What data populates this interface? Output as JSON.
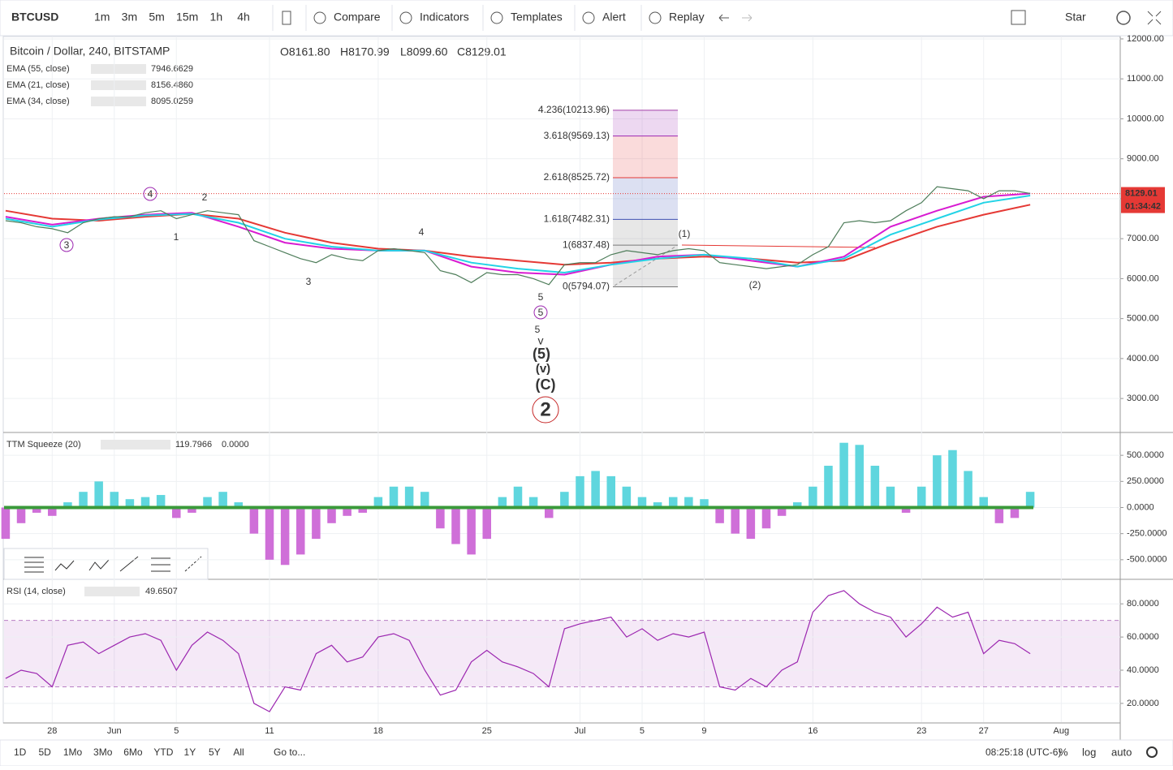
{
  "toolbar": {
    "symbol": "BTCUSD",
    "intervals": [
      "1m",
      "3m",
      "5m",
      "15m",
      "1h",
      "4h"
    ],
    "active_interval": 5,
    "buttons": [
      "Compare",
      "Indicators",
      "Templates",
      "Alert",
      "Replay"
    ],
    "star": "Star"
  },
  "legend": {
    "title": "Bitcoin / Dollar, 240, BITSTAMP",
    "ohlc": [
      "O8161.80",
      "H8170.99",
      "L8099.60",
      "C8129.01"
    ],
    "emas": [
      {
        "name": "EMA (55, close)",
        "value": "7946.6629",
        "color": "#e53935"
      },
      {
        "name": "EMA (21, close)",
        "value": "8156.4860",
        "color": "#d81bd1"
      },
      {
        "name": "EMA (34, close)",
        "value": "8095.0259",
        "color": "#22d3e6"
      }
    ]
  },
  "chart_data": [
    {
      "type": "line",
      "x": [
        -3,
        -2,
        -1,
        0,
        1,
        2,
        3,
        4,
        5,
        6,
        7,
        8,
        9,
        10,
        11,
        12,
        13,
        14,
        15,
        16,
        17,
        18,
        19,
        20,
        21,
        22,
        23,
        24,
        25,
        26,
        27,
        28,
        29,
        30,
        31,
        32,
        33,
        34,
        35,
        36,
        37,
        38,
        39,
        40,
        41,
        42,
        43,
        44,
        45,
        46,
        47,
        48,
        49,
        50,
        51,
        52,
        53,
        54,
        55,
        56,
        57,
        58,
        59,
        60,
        61,
        62,
        63
      ],
      "series": [
        {
          "name": "close",
          "color": "#4e7d5a",
          "values": [
            7450,
            7400,
            7300,
            7250,
            7150,
            7400,
            7500,
            7550,
            7550,
            7650,
            7700,
            7500,
            7600,
            7700,
            7650,
            7600,
            6950,
            6800,
            6650,
            6500,
            6400,
            6600,
            6500,
            6450,
            6700,
            6750,
            6700,
            6650,
            6200,
            6100,
            5900,
            6150,
            6100,
            6100,
            6000,
            5850,
            6350,
            6400,
            6400,
            6600,
            6700,
            6650,
            6600,
            6700,
            6750,
            6700,
            6400,
            6350,
            6300,
            6250,
            6300,
            6350,
            6600,
            6800,
            7400,
            7450,
            7400,
            7450,
            7700,
            7900,
            8300,
            8250,
            8200,
            8000,
            8200,
            8200,
            8130
          ]
        }
      ],
      "ema_x": [
        -3,
        0,
        3,
        6,
        9,
        12,
        15,
        18,
        21,
        24,
        27,
        30,
        33,
        36,
        39,
        42,
        45,
        48,
        51,
        54,
        57,
        60,
        63
      ],
      "ema_series": [
        {
          "name": "EMA (55, close)",
          "color": "#e53935",
          "values": [
            7700,
            7500,
            7450,
            7550,
            7620,
            7500,
            7150,
            6900,
            6750,
            6700,
            6550,
            6450,
            6350,
            6400,
            6500,
            6550,
            6500,
            6400,
            6450,
            6900,
            7300,
            7600,
            7850
          ]
        },
        {
          "name": "EMA (21, close)",
          "color": "#d81bd1",
          "values": [
            7550,
            7350,
            7500,
            7600,
            7650,
            7300,
            6900,
            6750,
            6700,
            6700,
            6300,
            6150,
            6100,
            6350,
            6550,
            6600,
            6450,
            6300,
            6550,
            7300,
            7700,
            8050,
            8130
          ]
        },
        {
          "name": "EMA (34, close)",
          "color": "#22d3e6",
          "values": [
            7500,
            7300,
            7480,
            7580,
            7620,
            7400,
            7000,
            6800,
            6700,
            6700,
            6400,
            6250,
            6150,
            6350,
            6500,
            6600,
            6500,
            6300,
            6500,
            7100,
            7500,
            7900,
            8080
          ]
        }
      ],
      "xlim": [
        -3.1,
        68.8
      ],
      "xticks": [
        {
          "value": 0,
          "label": "28"
        },
        {
          "value": 4,
          "label": "Jun"
        },
        {
          "value": 8,
          "label": "5"
        },
        {
          "value": 14,
          "label": "11"
        },
        {
          "value": 21,
          "label": "18"
        },
        {
          "value": 28,
          "label": "25"
        },
        {
          "value": 34,
          "label": "Jul"
        },
        {
          "value": 38,
          "label": "5"
        },
        {
          "value": 42,
          "label": "9"
        },
        {
          "value": 49,
          "label": "16"
        },
        {
          "value": 56,
          "label": "23"
        },
        {
          "value": 60,
          "label": "27"
        },
        {
          "value": 65,
          "label": "Aug"
        }
      ],
      "ylim": [
        2170,
        12060
      ],
      "yticks": [
        {
          "value": 3000,
          "label": "3000.00"
        },
        {
          "value": 4000,
          "label": "4000.00"
        },
        {
          "value": 5000,
          "label": "5000.00"
        },
        {
          "value": 6000,
          "label": "6000.00"
        },
        {
          "value": 7000,
          "label": "7000.00"
        },
        {
          "value": 8000,
          "label": "8000.00"
        },
        {
          "value": 9000,
          "label": "9000.00"
        },
        {
          "value": 10000,
          "label": "10000.00"
        },
        {
          "value": 11000,
          "label": "11000.00"
        },
        {
          "value": 12000,
          "label": "12000.00"
        }
      ],
      "last_price": {
        "value": 8129.01,
        "label": "8129.01"
      },
      "countdown": "01:34:42",
      "fib_levels": [
        {
          "label": "4.236(10213.96)",
          "value": 10213.96,
          "color": "#a23ea8"
        },
        {
          "label": "3.618(9569.13)",
          "value": 9569.13,
          "color": "#9c27b0"
        },
        {
          "label": "2.618(8525.72)",
          "value": 8525.72,
          "color": "#e53935"
        },
        {
          "label": "1.618(7482.31)",
          "value": 7482.31,
          "color": "#3f51b5"
        },
        {
          "label": "1(6837.48)",
          "value": 6837.48,
          "color": "#787878"
        },
        {
          "label": "0(5794.07)",
          "value": 5794.07,
          "color": "#787878"
        }
      ],
      "annotations": [
        "4",
        "2",
        "1",
        "3",
        "3",
        "4",
        "5",
        "5",
        "5",
        "v",
        "(5)",
        "(v)",
        "(C)",
        "2",
        "(1)",
        "(2)"
      ]
    },
    {
      "type": "histogram",
      "title": "TTM Squeeze (20)",
      "readouts": [
        "119.7966",
        "0.0000"
      ],
      "x": [
        -3,
        -2,
        -1,
        0,
        1,
        2,
        3,
        4,
        5,
        6,
        7,
        8,
        9,
        10,
        11,
        12,
        13,
        14,
        15,
        16,
        17,
        18,
        19,
        20,
        21,
        22,
        23,
        24,
        25,
        26,
        27,
        28,
        29,
        30,
        31,
        32,
        33,
        34,
        35,
        36,
        37,
        38,
        39,
        40,
        41,
        42,
        43,
        44,
        45,
        46,
        47,
        48,
        49,
        50,
        51,
        52,
        53,
        54,
        55,
        56,
        57,
        58,
        59,
        60,
        61,
        62,
        63
      ],
      "values": [
        -300,
        -150,
        -50,
        -80,
        50,
        150,
        250,
        150,
        80,
        100,
        120,
        -100,
        -50,
        100,
        150,
        50,
        -250,
        -500,
        -550,
        -450,
        -300,
        -150,
        -80,
        -50,
        100,
        200,
        200,
        150,
        -200,
        -350,
        -450,
        -300,
        100,
        200,
        100,
        -100,
        150,
        300,
        350,
        300,
        200,
        100,
        50,
        100,
        100,
        80,
        -150,
        -250,
        -300,
        -200,
        -80,
        50,
        200,
        400,
        620,
        600,
        400,
        200,
        -50,
        200,
        500,
        550,
        350,
        100,
        -150,
        -100,
        150
      ],
      "colors": {
        "positive": "#5fd6de",
        "negative": "#cf6fd8",
        "zero": "#3a9a3a"
      },
      "ylim": [
        -680,
        711
      ],
      "yticks": [
        {
          "value": 500,
          "label": "500.0000"
        },
        {
          "value": 250,
          "label": "250.0000"
        },
        {
          "value": 0,
          "label": "0.0000"
        },
        {
          "value": -250,
          "label": "-250.0000"
        },
        {
          "value": -500,
          "label": "-500.0000"
        }
      ]
    },
    {
      "type": "line",
      "title": "RSI (14, close)",
      "readouts": [
        "49.6507"
      ],
      "color": "#9c27b0",
      "x": [
        -3,
        -2,
        -1,
        0,
        1,
        2,
        3,
        4,
        5,
        6,
        7,
        8,
        9,
        10,
        11,
        12,
        13,
        14,
        15,
        16,
        17,
        18,
        19,
        20,
        21,
        22,
        23,
        24,
        25,
        26,
        27,
        28,
        29,
        30,
        31,
        32,
        33,
        34,
        35,
        36,
        37,
        38,
        39,
        40,
        41,
        42,
        43,
        44,
        45,
        46,
        47,
        48,
        49,
        50,
        51,
        52,
        53,
        54,
        55,
        56,
        57,
        58,
        59,
        60,
        61,
        62,
        63
      ],
      "values": [
        35,
        40,
        38,
        30,
        55,
        57,
        50,
        55,
        60,
        62,
        58,
        40,
        55,
        63,
        58,
        50,
        20,
        15,
        30,
        28,
        50,
        55,
        45,
        48,
        60,
        62,
        58,
        40,
        25,
        28,
        45,
        52,
        45,
        42,
        38,
        30,
        65,
        68,
        70,
        72,
        60,
        65,
        58,
        62,
        60,
        63,
        30,
        28,
        35,
        30,
        40,
        45,
        75,
        85,
        88,
        80,
        75,
        72,
        60,
        68,
        78,
        72,
        75,
        50,
        58,
        56,
        50
      ],
      "band": [
        30,
        70
      ],
      "ylim": [
        8.7,
        94.3
      ],
      "yticks": [
        {
          "value": 20,
          "label": "20.0000"
        },
        {
          "value": 40,
          "label": "40.0000"
        },
        {
          "value": 60,
          "label": "60.0000"
        },
        {
          "value": 80,
          "label": "80.0000"
        }
      ]
    }
  ],
  "bottom_bar": {
    "ranges": [
      "1D",
      "5D",
      "1Mo",
      "3Mo",
      "6Mo",
      "YTD",
      "1Y",
      "5Y",
      "All"
    ],
    "goto": "Go to...",
    "clock": "08:25:18 (UTC-6)",
    "options": [
      "%",
      "log",
      "auto"
    ]
  }
}
